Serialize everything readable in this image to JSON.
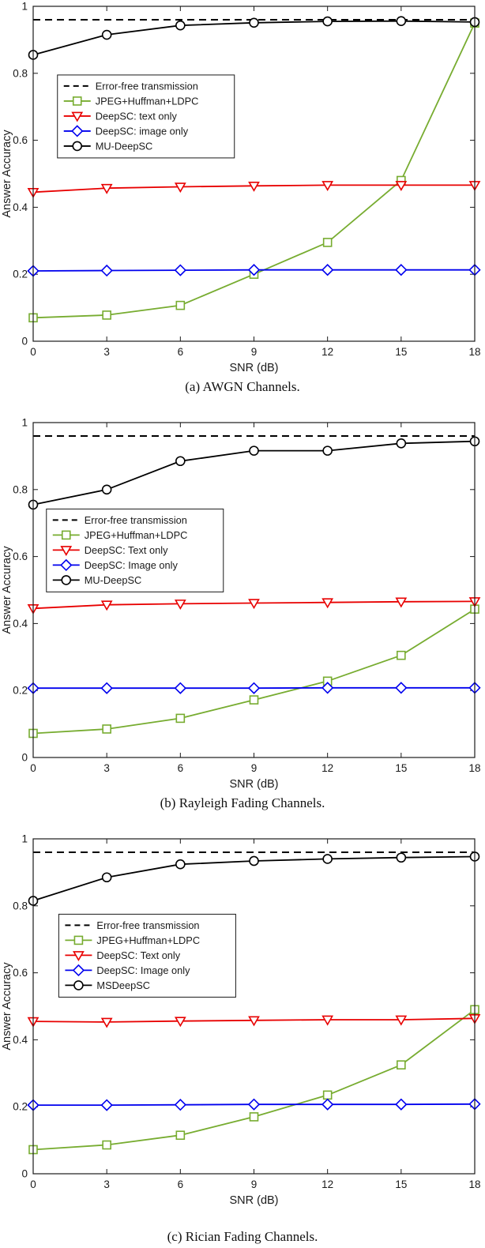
{
  "page": {
    "background": "#ffffff"
  },
  "colors": {
    "axis": "#1a1a1a",
    "error_free": "#000000",
    "jpeg": "#77AC30",
    "deepsc_text": "#E80000",
    "deepsc_image": "#0000EE",
    "mu_deepsc": "#000000"
  },
  "chart_data": [
    {
      "type": "line",
      "caption": "(a) AWGN Channels.",
      "xlabel": "SNR (dB)",
      "ylabel": "Answer Accuracy",
      "x": [
        0,
        3,
        6,
        9,
        12,
        15,
        18
      ],
      "xlim": [
        0,
        18
      ],
      "ylim": [
        0,
        1
      ],
      "yticks": [
        0,
        0.2,
        0.4,
        0.6,
        0.8,
        1
      ],
      "ytick_labels": [
        "0",
        "0.2",
        "0.4",
        "0.6",
        "0.8",
        "1"
      ],
      "xtick_labels": [
        "0",
        "3",
        "6",
        "9",
        "12",
        "15",
        "18"
      ],
      "grid": false,
      "legend_position": {
        "x": 0.055,
        "y": 0.205
      },
      "series": [
        {
          "name": "Error-free transmission",
          "color": "#000000",
          "style": "dashed",
          "marker": "none",
          "values": [
            0.96,
            0.96,
            0.96,
            0.96,
            0.96,
            0.96,
            0.96
          ]
        },
        {
          "name": "JPEG+Huffman+LDPC",
          "color": "#77AC30",
          "style": "solid",
          "marker": "square",
          "values": [
            0.07,
            0.078,
            0.107,
            0.2,
            0.295,
            0.48,
            0.95
          ]
        },
        {
          "name": "DeepSC: text only",
          "color": "#E80000",
          "style": "solid",
          "marker": "triangle-down",
          "values": [
            0.445,
            0.457,
            0.461,
            0.464,
            0.466,
            0.466,
            0.466
          ]
        },
        {
          "name": "DeepSC: image only",
          "color": "#0000EE",
          "style": "solid",
          "marker": "diamond",
          "values": [
            0.21,
            0.211,
            0.212,
            0.213,
            0.213,
            0.213,
            0.213
          ]
        },
        {
          "name": "MU-DeepSC",
          "color": "#000000",
          "style": "solid",
          "marker": "circle",
          "values": [
            0.855,
            0.915,
            0.943,
            0.951,
            0.955,
            0.956,
            0.953
          ]
        }
      ]
    },
    {
      "type": "line",
      "caption": "(b) Rayleigh Fading Channels.",
      "xlabel": "SNR (dB)",
      "ylabel": "Answer Accuracy",
      "x": [
        0,
        3,
        6,
        9,
        12,
        15,
        18
      ],
      "xlim": [
        0,
        18
      ],
      "ylim": [
        0,
        1
      ],
      "yticks": [
        0,
        0.2,
        0.4,
        0.6,
        0.8,
        1
      ],
      "ytick_labels": [
        "0",
        "0.2",
        "0.4",
        "0.6",
        "0.8",
        "1"
      ],
      "xtick_labels": [
        "0",
        "3",
        "6",
        "9",
        "12",
        "15",
        "18"
      ],
      "grid": false,
      "legend_position": {
        "x": 0.03,
        "y": 0.258
      },
      "series": [
        {
          "name": "Error-free transmission",
          "color": "#000000",
          "style": "dashed",
          "marker": "none",
          "values": [
            0.96,
            0.96,
            0.96,
            0.96,
            0.96,
            0.96,
            0.96
          ]
        },
        {
          "name": "JPEG+Huffman+LDPC",
          "color": "#77AC30",
          "style": "solid",
          "marker": "square",
          "values": [
            0.072,
            0.085,
            0.117,
            0.172,
            0.228,
            0.305,
            0.443
          ]
        },
        {
          "name": "DeepSC: Text only",
          "color": "#E80000",
          "style": "solid",
          "marker": "triangle-down",
          "values": [
            0.445,
            0.456,
            0.459,
            0.461,
            0.463,
            0.465,
            0.466
          ]
        },
        {
          "name": "DeepSC: Image only",
          "color": "#0000EE",
          "style": "solid",
          "marker": "diamond",
          "values": [
            0.207,
            0.207,
            0.207,
            0.207,
            0.208,
            0.208,
            0.208
          ]
        },
        {
          "name": "MU-DeepSC",
          "color": "#000000",
          "style": "solid",
          "marker": "circle",
          "values": [
            0.755,
            0.8,
            0.885,
            0.916,
            0.916,
            0.938,
            0.944
          ]
        }
      ]
    },
    {
      "type": "line",
      "caption": "(c) Rician Fading Channels.",
      "xlabel": "SNR (dB)",
      "ylabel": "Answer Accuracy",
      "x": [
        0,
        3,
        6,
        9,
        12,
        15,
        18
      ],
      "xlim": [
        0,
        18
      ],
      "ylim": [
        0,
        1
      ],
      "yticks": [
        0,
        0.2,
        0.4,
        0.6,
        0.8,
        1
      ],
      "ytick_labels": [
        "0",
        "0.2",
        "0.4",
        "0.6",
        "0.8",
        "1"
      ],
      "xtick_labels": [
        "0",
        "3",
        "6",
        "9",
        "12",
        "15",
        "18"
      ],
      "grid": false,
      "legend_position": {
        "x": 0.058,
        "y": 0.225
      },
      "series": [
        {
          "name": "Error-free transmission",
          "color": "#000000",
          "style": "dashed",
          "marker": "none",
          "values": [
            0.96,
            0.96,
            0.96,
            0.96,
            0.96,
            0.96,
            0.96
          ]
        },
        {
          "name": "JPEG+Huffman+LDPC",
          "color": "#77AC30",
          "style": "solid",
          "marker": "square",
          "values": [
            0.072,
            0.086,
            0.115,
            0.17,
            0.235,
            0.325,
            0.49
          ]
        },
        {
          "name": "DeepSC: Text only",
          "color": "#E80000",
          "style": "solid",
          "marker": "triangle-down",
          "values": [
            0.455,
            0.453,
            0.456,
            0.458,
            0.46,
            0.46,
            0.464
          ]
        },
        {
          "name": "DeepSC: Image only",
          "color": "#0000EE",
          "style": "solid",
          "marker": "diamond",
          "values": [
            0.205,
            0.205,
            0.206,
            0.207,
            0.207,
            0.207,
            0.208
          ]
        },
        {
          "name": "MSDeepSC",
          "color": "#000000",
          "style": "solid",
          "marker": "circle",
          "values": [
            0.815,
            0.885,
            0.924,
            0.934,
            0.94,
            0.944,
            0.947
          ]
        }
      ]
    }
  ]
}
